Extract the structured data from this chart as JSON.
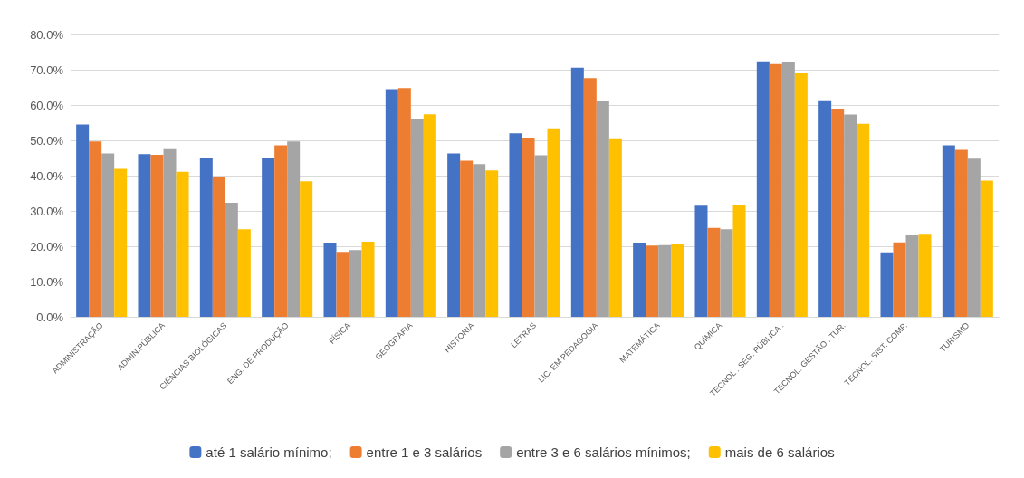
{
  "chart_data": {
    "type": "bar",
    "categories": [
      "ADMINISTRAÇÃO",
      "ADMIN.PÚBLICA",
      "CIÊNCIAS BIOLÓGICAS",
      "ENG. DE PRODUÇÃO",
      "FÍSICA",
      "GEOGRAFIA",
      "HISTORIA",
      "LETRAS",
      "LIC. EM PEDAGOGIA",
      "MATEMÁTICA",
      "QUÍMICA",
      "TECNOL . SEG. PÚBLICA .",
      "TECNOL. GESTÃO . TUR.",
      "TECNOL. SIST. COMP.",
      "TURISMO"
    ],
    "series": [
      {
        "name": "até 1 salário mínimo;",
        "color": "#4472c4",
        "values": [
          54.5,
          46.1,
          44.9,
          44.9,
          21.0,
          64.5,
          46.3,
          52.0,
          70.6,
          21.0,
          31.7,
          72.4,
          61.1,
          18.3,
          48.6
        ]
      },
      {
        "name": "entre 1 e 3 salários",
        "color": "#ed7d31",
        "values": [
          49.7,
          45.9,
          39.7,
          48.6,
          18.4,
          64.8,
          44.2,
          50.8,
          67.6,
          20.2,
          25.2,
          71.6,
          59.0,
          21.1,
          47.3
        ]
      },
      {
        "name": "entre 3 e 6 salários mínimos;",
        "color": "#a5a5a5",
        "values": [
          46.3,
          47.5,
          32.3,
          49.7,
          18.9,
          56.0,
          43.3,
          45.8,
          61.0,
          20.3,
          24.8,
          72.1,
          57.3,
          23.1,
          44.8
        ]
      },
      {
        "name": "mais de 6 salários",
        "color": "#ffc000",
        "values": [
          41.9,
          41.1,
          24.8,
          38.4,
          21.3,
          57.4,
          41.5,
          53.4,
          50.6,
          20.5,
          31.8,
          69.0,
          54.7,
          23.3,
          38.6
        ]
      }
    ],
    "ylim": [
      0,
      80
    ],
    "yticks": [
      {
        "value": 0,
        "label": "0.0%"
      },
      {
        "value": 10,
        "label": "10.0%"
      },
      {
        "value": 20,
        "label": "20.0%"
      },
      {
        "value": 30,
        "label": "30.0%"
      },
      {
        "value": 40,
        "label": "40.0%"
      },
      {
        "value": 50,
        "label": "50.0%"
      },
      {
        "value": 60,
        "label": "60.0%"
      },
      {
        "value": 70,
        "label": "70.0%"
      },
      {
        "value": 80,
        "label": "80.0%"
      }
    ],
    "grid": "y",
    "legend": "bottom"
  }
}
